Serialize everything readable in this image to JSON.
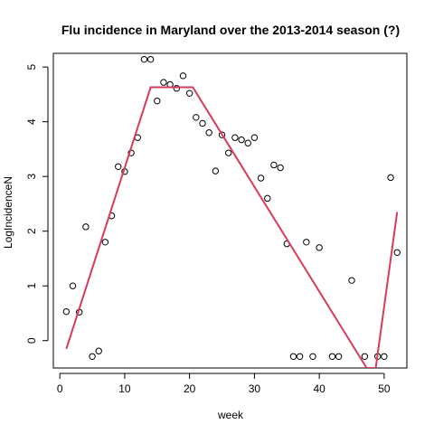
{
  "chart_data": {
    "type": "scatter",
    "title": "Flu incidence in Maryland over the 2013-2014 season (?)",
    "xlabel": "week",
    "ylabel": "LogIncidenceN",
    "xlim": [
      -1,
      53.5
    ],
    "ylim": [
      -0.5,
      5.25
    ],
    "xticks": [
      0,
      10,
      20,
      30,
      40,
      50
    ],
    "yticks": [
      0,
      1,
      2,
      3,
      4,
      5
    ],
    "grid": false,
    "series": [
      {
        "type": "scatter",
        "marker": "open-circle",
        "color": "#000000",
        "points": [
          [
            1,
            0.53
          ],
          [
            2,
            1.0
          ],
          [
            3,
            0.52
          ],
          [
            4,
            2.08
          ],
          [
            5,
            -0.29
          ],
          [
            6,
            -0.19
          ],
          [
            7,
            1.8
          ],
          [
            8,
            2.28
          ],
          [
            9,
            3.18
          ],
          [
            10,
            3.09
          ],
          [
            11,
            3.43
          ],
          [
            12,
            3.71
          ],
          [
            13,
            5.14
          ],
          [
            14,
            5.14
          ],
          [
            15,
            4.38
          ],
          [
            16,
            4.72
          ],
          [
            17,
            4.68
          ],
          [
            18,
            4.61
          ],
          [
            19,
            4.84
          ],
          [
            20,
            4.52
          ],
          [
            21,
            4.08
          ],
          [
            22,
            3.97
          ],
          [
            23,
            3.8
          ],
          [
            24,
            3.1
          ],
          [
            25,
            3.76
          ],
          [
            26,
            3.43
          ],
          [
            27,
            3.71
          ],
          [
            28,
            3.67
          ],
          [
            29,
            3.61
          ],
          [
            30,
            3.71
          ],
          [
            31,
            2.97
          ],
          [
            32,
            2.6
          ],
          [
            33,
            3.21
          ],
          [
            34,
            3.16
          ],
          [
            35,
            1.77
          ],
          [
            36,
            -0.29
          ],
          [
            37,
            -0.29
          ],
          [
            38,
            1.8
          ],
          [
            39,
            -0.29
          ],
          [
            40,
            1.7
          ],
          [
            42,
            -0.29
          ],
          [
            43,
            -0.29
          ],
          [
            45,
            1.1
          ],
          [
            47,
            -0.29
          ],
          [
            49,
            -0.29
          ],
          [
            50,
            -0.29
          ],
          [
            51,
            2.98
          ],
          [
            52,
            1.61
          ]
        ]
      },
      {
        "type": "line",
        "color": "#D63B5B",
        "points": [
          [
            1,
            -0.15
          ],
          [
            14,
            4.63
          ],
          [
            20.5,
            4.63
          ],
          [
            47.3,
            -0.5
          ],
          [
            48.7,
            -0.5
          ],
          [
            52,
            2.35
          ]
        ]
      }
    ]
  }
}
